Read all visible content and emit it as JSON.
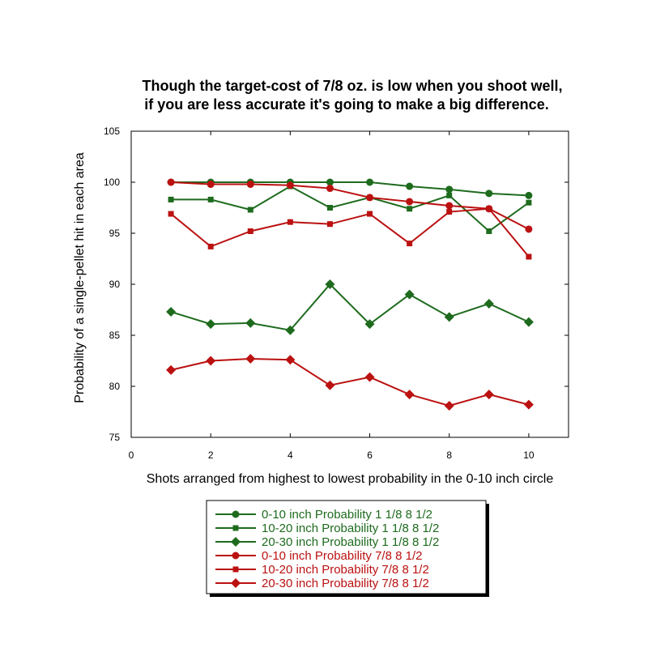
{
  "chart_data": {
    "type": "line",
    "title_lines": [
      "Though the target-cost of 7/8 oz. is low when you shoot well,",
      "if you are less accurate it's going to make a big difference."
    ],
    "xlabel": "Shots arranged from  highest to lowest probability in the 0-10 inch circle",
    "ylabel": "Probability of a single-pellet hit in each area",
    "xlim": [
      0,
      11
    ],
    "ylim": [
      75,
      105
    ],
    "xticks": [
      0,
      2,
      4,
      6,
      8,
      10
    ],
    "yticks": [
      75,
      80,
      85,
      90,
      95,
      100,
      105
    ],
    "grid": false,
    "legend_placement": "bottom-center",
    "x": [
      1,
      2,
      3,
      4,
      5,
      6,
      7,
      8,
      9,
      10
    ],
    "series": [
      {
        "name": "0-10 inch Probability 1 1/8  8 1/2",
        "color": "#1e6b1e",
        "marker": "circle",
        "values": [
          100,
          100,
          100,
          100,
          100,
          100,
          99.6,
          99.3,
          98.9,
          98.7
        ]
      },
      {
        "name": "10-20 inch Probability 1 1/8  8 1/2",
        "color": "#1e6b1e",
        "marker": "square",
        "values": [
          98.3,
          98.3,
          97.3,
          99.6,
          97.5,
          98.5,
          97.4,
          98.7,
          95.2,
          98.0
        ]
      },
      {
        "name": "20-30 inch Probability 1 1/8  8 1/2",
        "color": "#1e6b1e",
        "marker": "diamond",
        "values": [
          87.3,
          86.1,
          86.2,
          85.5,
          90.0,
          86.1,
          89.0,
          86.8,
          88.1,
          86.3
        ]
      },
      {
        "name": "0-10 inch Probability 7/8  8 1/2",
        "color": "#bb1111",
        "marker": "circle",
        "values": [
          100,
          99.8,
          99.8,
          99.7,
          99.4,
          98.5,
          98.1,
          97.7,
          97.4,
          95.4
        ]
      },
      {
        "name": "10-20 inch Probability 7/8  8 1/2",
        "color": "#bb1111",
        "marker": "square",
        "values": [
          96.9,
          93.7,
          95.2,
          96.1,
          95.9,
          96.9,
          94.0,
          97.1,
          97.4,
          92.7
        ]
      },
      {
        "name": "20-30 inch Probability 7/8  8 1/2",
        "color": "#bb1111",
        "marker": "diamond",
        "values": [
          81.6,
          82.5,
          82.7,
          82.6,
          80.1,
          80.9,
          79.2,
          78.1,
          79.2,
          78.2
        ]
      }
    ]
  }
}
